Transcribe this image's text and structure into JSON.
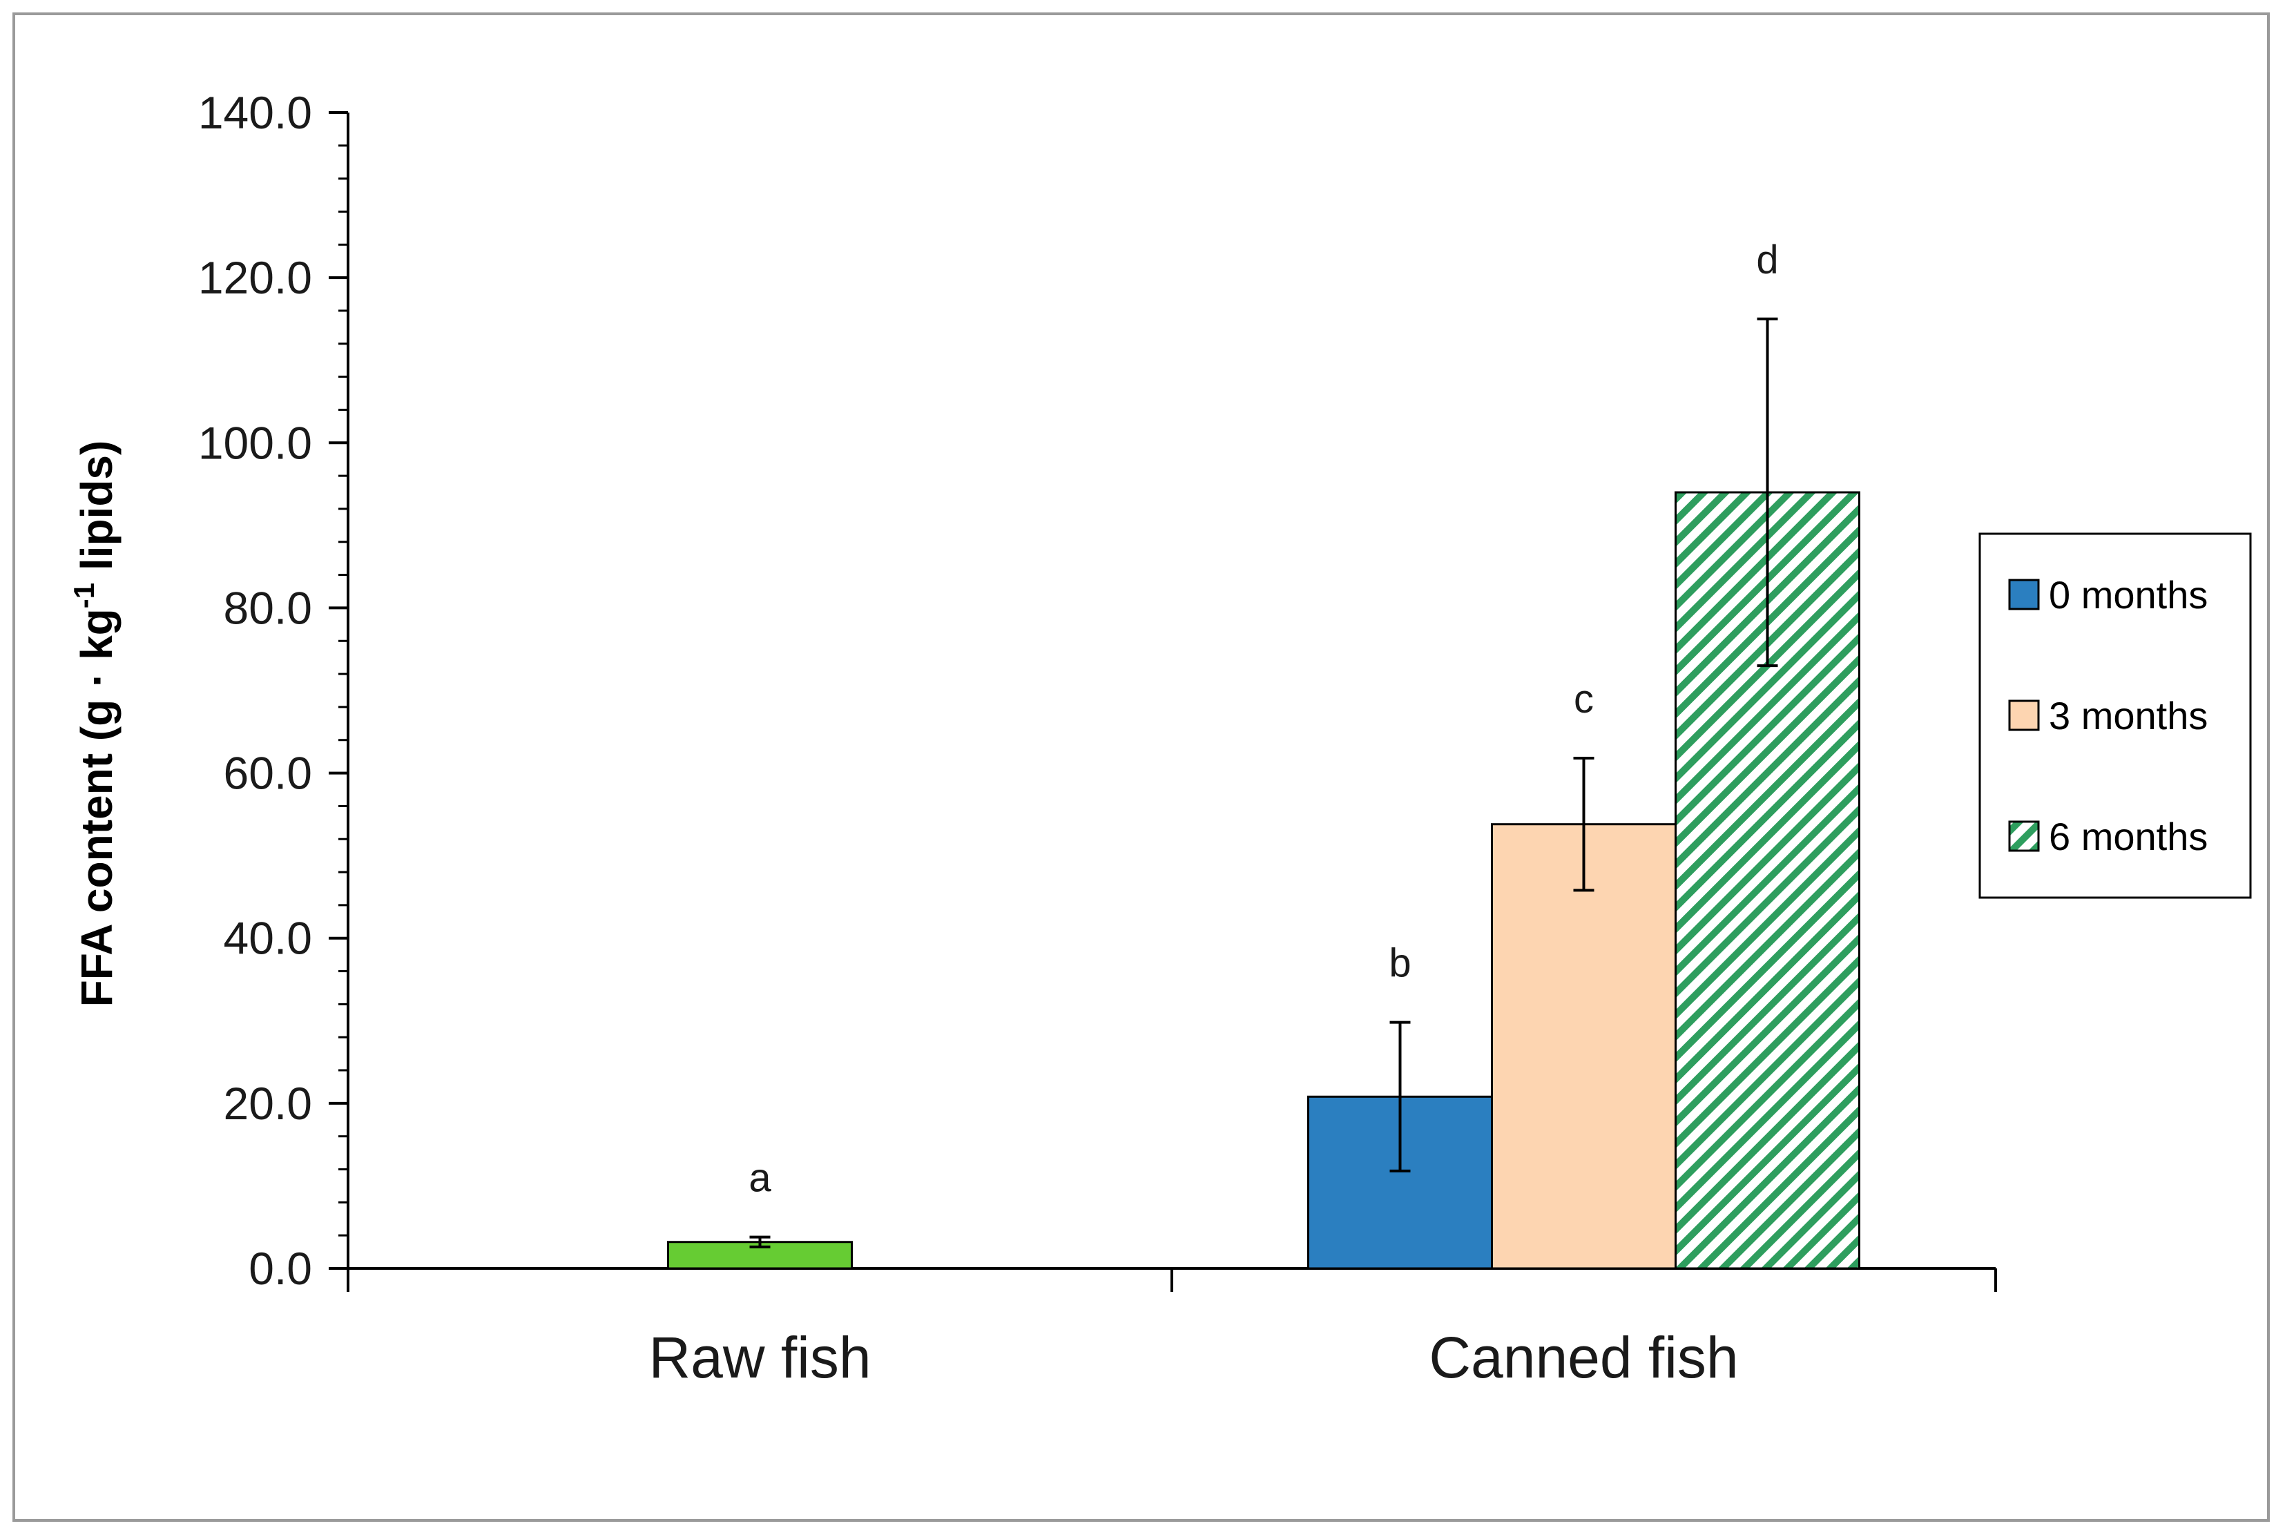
{
  "chart_data": {
    "type": "bar",
    "title": "",
    "ylabel": "FFA content  (g · kg-1 lipids)",
    "ylabel_parts": {
      "before": "FFA content  (g · kg",
      "sup": "-1",
      "after": " lipids)"
    },
    "ylim": [
      0,
      140
    ],
    "yticks": [
      "0.0",
      "20.0",
      "40.0",
      "60.0",
      "80.0",
      "100.0",
      "120.0",
      "140.0"
    ],
    "categories": [
      "Raw fish",
      "Canned fish"
    ],
    "grid": false,
    "legend_position": "right",
    "bars": [
      {
        "category": "Raw fish",
        "series": "raw",
        "value": 3.2,
        "error": 0.6,
        "letter": "a",
        "color": "#66cc33",
        "pattern": "solid"
      },
      {
        "category": "Canned fish",
        "series": "0 months",
        "value": 20.8,
        "error": 9.0,
        "letter": "b",
        "color": "#2b7fc0",
        "pattern": "solid"
      },
      {
        "category": "Canned fish",
        "series": "3 months",
        "value": 53.8,
        "error": 8.0,
        "letter": "c",
        "color": "#fdd5b1",
        "pattern": "solid"
      },
      {
        "category": "Canned fish",
        "series": "6 months",
        "value": 94.0,
        "error": 21.0,
        "letter": "d",
        "color": "#2e9e5e",
        "pattern": "diagonal-hatch"
      }
    ],
    "legend": [
      {
        "label": "0 months",
        "color": "#2b7fc0",
        "pattern": "solid"
      },
      {
        "label": "3 months",
        "color": "#fdd5b1",
        "pattern": "solid"
      },
      {
        "label": "6 months",
        "color": "#2e9e5e",
        "pattern": "diagonal-hatch"
      }
    ]
  }
}
